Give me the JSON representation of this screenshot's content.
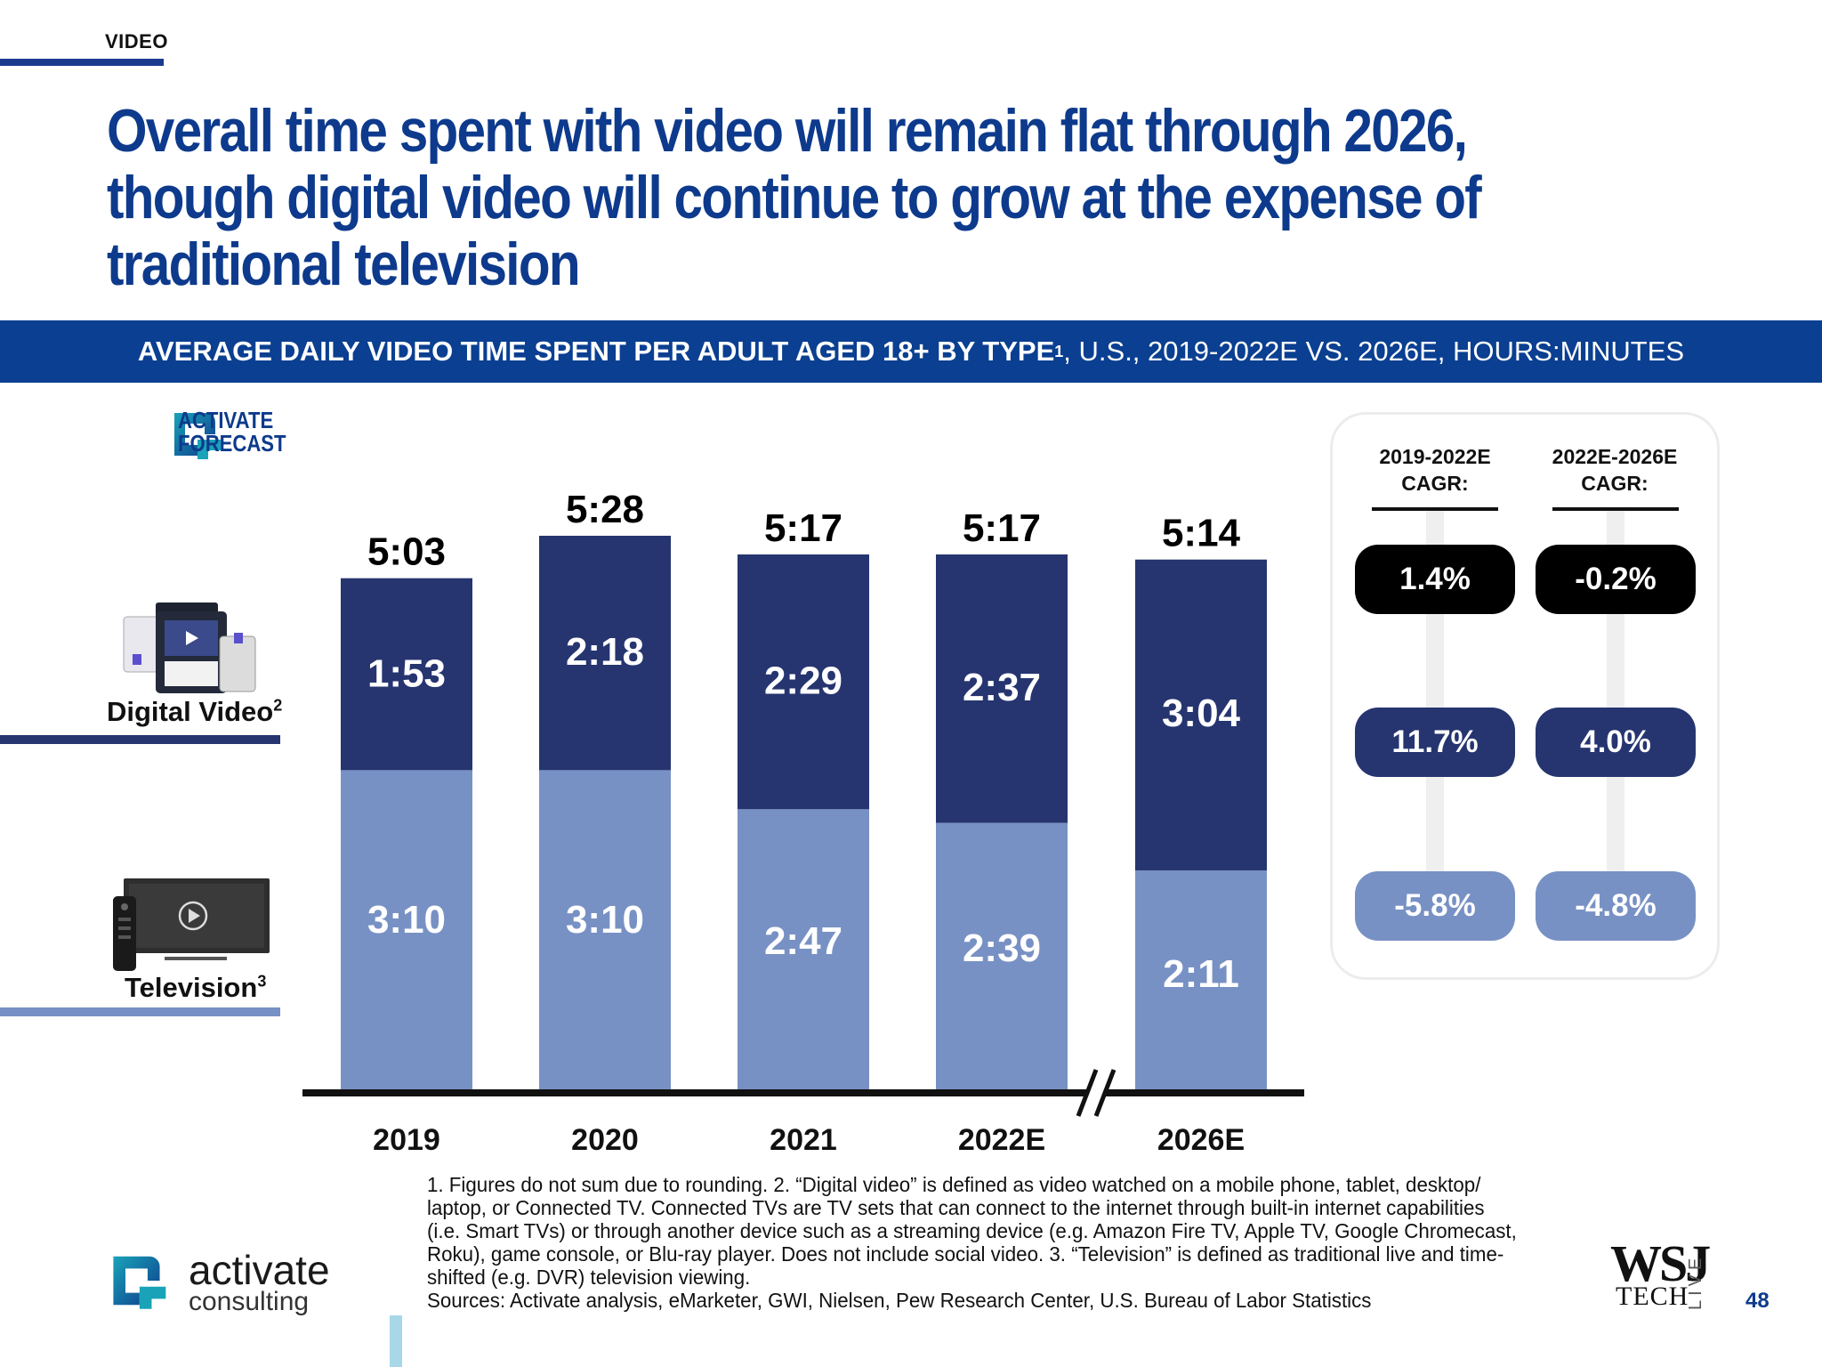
{
  "header": {
    "section_label": "VIDEO",
    "title": "Overall time spent with video will remain flat through 2026, though digital video will continue to grow at the expense of traditional television"
  },
  "banner": {
    "bold": "AVERAGE DAILY VIDEO TIME SPENT PER ADULT AGED 18+ BY TYPE",
    "sup": "1",
    "rest": ", U.S., 2019-2022E VS. 2026E, HOURS:MINUTES"
  },
  "forecast_badge": {
    "line1": "ACTIVATE",
    "line2": "FORECAST"
  },
  "legend": {
    "digital": {
      "label": "Digital Video",
      "sup": "2"
    },
    "tv": {
      "label": "Television",
      "sup": "3"
    }
  },
  "colors": {
    "digital": "#263570",
    "television": "#7891c4",
    "title": "#0d3a8c",
    "banner": "#0a3f91",
    "black_pill": "#000000"
  },
  "chart_data": {
    "type": "bar",
    "stacked": true,
    "categories": [
      "2019",
      "2020",
      "2021",
      "2022E",
      "2026E"
    ],
    "series": [
      {
        "name": "Television",
        "values": [
          190,
          190,
          167,
          159,
          131
        ],
        "labels": [
          "3:10",
          "3:10",
          "2:47",
          "2:39",
          "2:11"
        ]
      },
      {
        "name": "Digital Video",
        "values": [
          113,
          138,
          149,
          157,
          184
        ],
        "labels": [
          "1:53",
          "2:18",
          "2:29",
          "2:37",
          "3:04"
        ]
      }
    ],
    "totals": {
      "values": [
        303,
        328,
        317,
        317,
        314
      ],
      "labels": [
        "5:03",
        "5:28",
        "5:17",
        "5:17",
        "5:14"
      ]
    },
    "axis_break_between": [
      "2022E",
      "2026E"
    ],
    "ylim": [
      0,
      328
    ]
  },
  "cagr": {
    "headers": [
      {
        "line1": "2019-2022E",
        "line2": "CAGR:"
      },
      {
        "line1": "2022E-2026E",
        "line2": "CAGR:"
      }
    ],
    "total": [
      "1.4%",
      "-0.2%"
    ],
    "digital": [
      "11.7%",
      "4.0%"
    ],
    "television": [
      "-5.8%",
      "-4.8%"
    ]
  },
  "footnote": {
    "lines": [
      "1. Figures do not sum due to rounding.  2. “Digital video” is defined as video watched on a mobile phone, tablet, desktop/",
      "laptop, or Connected TV. Connected TVs are TV sets that can connect to the internet through built-in internet capabilities",
      "(i.e. Smart TVs) or through another device such as a streaming device (e.g. Amazon Fire TV, Apple TV, Google Chromecast,",
      "Roku), game console, or Blu-ray player. Does not include social video.  3. “Television” is defined as traditional live and time-",
      "shifted (e.g. DVR) television viewing.",
      "Sources: Activate analysis, eMarketer, GWI, Nielsen, Pew Research Center, U.S. Bureau of Labor Statistics"
    ]
  },
  "footer": {
    "brand": "activate",
    "brand_sub": "consulting",
    "wsj": "WSJ",
    "tech": "TECH",
    "live": "LIVE",
    "page_number": "48"
  }
}
